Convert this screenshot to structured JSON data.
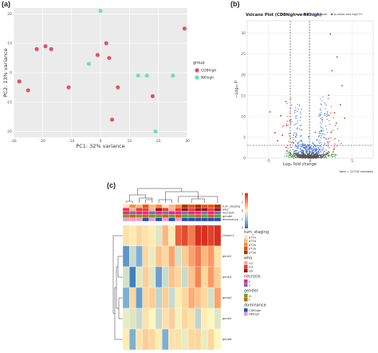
{
  "panels": {
    "a": "(a)",
    "b": "(b)",
    "c": "(c)"
  },
  "pca": {
    "xlabel": "PC1: 32% variance",
    "ylabel": "PC2: 13% variance",
    "xticks": [
      "-30",
      "-20",
      "-10",
      "0",
      "10",
      "20",
      "30"
    ],
    "yticks": [
      "20",
      "10",
      "0",
      "-10",
      "-20"
    ],
    "legend_title": "group",
    "legend_items": [
      {
        "label": "CD8high",
        "color": "#e4505e"
      },
      {
        "label": "NKhigh",
        "color": "#6dddc3"
      }
    ]
  },
  "volcano": {
    "title": "Volcano Plot (CD8high vs NKhigh)",
    "legend_items": [
      "NS",
      "Log2 FC",
      "p-value",
      "p-value and log2 FC"
    ],
    "xlabel": "Log₂ fold change",
    "ylabel": "−Log₁₀ P",
    "yticks": [
      "0",
      "5",
      "10",
      "15",
      "20",
      "25",
      "30"
    ],
    "xticks": [
      "-5",
      "0",
      "5"
    ],
    "caption": "total = 22718 variables"
  },
  "heatmap": {
    "track_labels": [
      "tum_staging",
      "who",
      "necrosis",
      "gender",
      "dominance"
    ],
    "row_labels": [
      "cluster1",
      "gene2",
      "gene3",
      "gene4",
      "gene5",
      "gene6"
    ],
    "scale_ticks": [
      "2",
      "1",
      "0",
      "-1",
      "-2"
    ],
    "legends": [
      {
        "title": "tum_staging",
        "items": [
          {
            "label": "pT1a",
            "color": "#fde0c5"
          },
          {
            "label": "pT1b",
            "color": "#fbb77f"
          },
          {
            "label": "pT2a",
            "color": "#f68b3b"
          },
          {
            "label": "pT3a",
            "color": "#e6550d"
          },
          {
            "label": "pT3b",
            "color": "#a63603"
          }
        ]
      },
      {
        "title": "who",
        "items": [
          {
            "label": "G2",
            "color": "#fcae91"
          },
          {
            "label": "G3",
            "color": "#ef3b2c"
          },
          {
            "label": "G4",
            "color": "#a50f15"
          }
        ]
      },
      {
        "title": "necrosis",
        "items": [
          {
            "label": "y",
            "color": "#e7298a"
          },
          {
            "label": "n",
            "color": "#7570b3"
          }
        ]
      },
      {
        "title": "gender",
        "items": [
          {
            "label": "m",
            "color": "#66a61e"
          },
          {
            "label": "f",
            "color": "#d95f02"
          }
        ]
      },
      {
        "title": "dominance",
        "items": [
          {
            "label": "CD8high",
            "color": "#1f4fc4"
          },
          {
            "label": "NKhigh",
            "color": "#f49ac2"
          }
        ]
      }
    ]
  },
  "chart_data": [
    {
      "type": "scatter",
      "xlabel": "PC1: 32% variance",
      "ylabel": "PC2: 13% variance",
      "xlim": [
        -30,
        30
      ],
      "ylim": [
        -22,
        22
      ],
      "series": [
        {
          "name": "CD8high",
          "color": "#e4505e",
          "points": [
            [
              -28,
              -3
            ],
            [
              -25,
              -6
            ],
            [
              -22,
              8
            ],
            [
              -19,
              9
            ],
            [
              -17,
              8
            ],
            [
              -11,
              -5
            ],
            [
              -1,
              6
            ],
            [
              2,
              10
            ],
            [
              3,
              5
            ],
            [
              6,
              -5
            ],
            [
              4,
              -16
            ],
            [
              18,
              -8
            ],
            [
              29,
              15
            ]
          ]
        },
        {
          "name": "NKhigh",
          "color": "#6dddc3",
          "points": [
            [
              0,
              21
            ],
            [
              -4,
              3
            ],
            [
              13,
              -1
            ],
            [
              16,
              -1
            ],
            [
              25,
              -1
            ],
            [
              19,
              -20
            ]
          ]
        }
      ]
    },
    {
      "type": "scatter",
      "title": "Volcano Plot (CD8high vs NKhigh)",
      "xlabel": "Log₂ fold change",
      "ylabel": "−Log₁₀ P",
      "xlim": [
        -7.5,
        7.5
      ],
      "ylim": [
        0,
        33
      ],
      "series": [
        {
          "name": "NS",
          "color": "#555555",
          "points": [
            [
              -1.2,
              0.4
            ],
            [
              0.2,
              0.2
            ],
            [
              0.8,
              0.6
            ],
            [
              -0.6,
              0.3
            ],
            [
              1.3,
              0.1
            ],
            [
              -0.3,
              0.8
            ]
          ]
        },
        {
          "name": "Log2 FC",
          "color": "#2ca02c",
          "points": [
            [
              -2.3,
              0.9
            ],
            [
              -1.9,
              1.1
            ],
            [
              2.2,
              0.6
            ],
            [
              2.6,
              0.9
            ],
            [
              -2.8,
              0.5
            ],
            [
              3.0,
              0.8
            ]
          ]
        },
        {
          "name": "p-value",
          "color": "#3a6fd8",
          "points": [
            [
              -0.8,
              2.5
            ],
            [
              0.3,
              3.6
            ],
            [
              0.8,
              4.4
            ],
            [
              -0.2,
              5.1
            ],
            [
              0.6,
              6.2
            ],
            [
              -0.6,
              3.1
            ]
          ]
        },
        {
          "name": "p-value and log2 FC",
          "color": "#c0392b",
          "points": [
            [
              -3.3,
              5.5
            ],
            [
              -2.8,
              7.8
            ],
            [
              -4.2,
              6.1
            ],
            [
              -3.5,
              10.2
            ],
            [
              -2.4,
              9.0
            ],
            [
              -4.8,
              11.1
            ],
            [
              2.5,
              6.2
            ],
            [
              3.1,
              8.4
            ],
            [
              2.9,
              10.9
            ],
            [
              3.6,
              12.8
            ],
            [
              2.2,
              15.1
            ],
            [
              4.1,
              9.6
            ],
            [
              3.8,
              17.4
            ],
            [
              2.6,
              21.0
            ],
            [
              3.2,
              24.3
            ],
            [
              2.4,
              29.8
            ],
            [
              -2.9,
              13.6
            ],
            [
              -3.9,
              4.2
            ]
          ]
        }
      ]
    },
    {
      "type": "heatmap",
      "rows": [
        "cluster1",
        "gene2",
        "gene3",
        "gene4",
        "gene5",
        "gene6"
      ],
      "values": [
        [
          0.2,
          0.1,
          0.3,
          0.2,
          0.1,
          -0.3,
          0.6,
          0.1,
          1.5,
          1.7,
          1.2,
          2.0,
          2.1,
          1.8,
          2.1
        ],
        [
          -1.5,
          -0.5,
          -1.2,
          0.3,
          -0.2,
          0.5,
          0.3,
          0.8,
          -0.4,
          0.4,
          0.8,
          1.2,
          0.6,
          0.9,
          0.2
        ],
        [
          -0.4,
          -1.8,
          -0.3,
          0.4,
          -0.3,
          -1.4,
          -0.5,
          0.5,
          0.3,
          -0.5,
          0.5,
          1.1,
          0.3,
          0.9,
          0.4
        ],
        [
          -1.2,
          0.3,
          -1.4,
          0.3,
          0.4,
          -0.6,
          0.4,
          -0.5,
          0.1,
          0.3,
          0.7,
          0.5,
          0.3,
          -0.4,
          0.8
        ],
        [
          -0.2,
          -0.3,
          -0.5,
          0.2,
          0.0,
          -0.5,
          0.2,
          0.4,
          -0.1,
          0.3,
          0.2,
          -0.6,
          0.1,
          0.0,
          -0.3
        ],
        [
          0.1,
          -1.2,
          0.2,
          0.4,
          0.3,
          0.1,
          -1.2,
          0.2,
          0.2,
          -0.2,
          0.3,
          0.3,
          -0.2,
          0.3,
          0.0
        ]
      ],
      "scale_range": [
        -2,
        2
      ]
    }
  ]
}
